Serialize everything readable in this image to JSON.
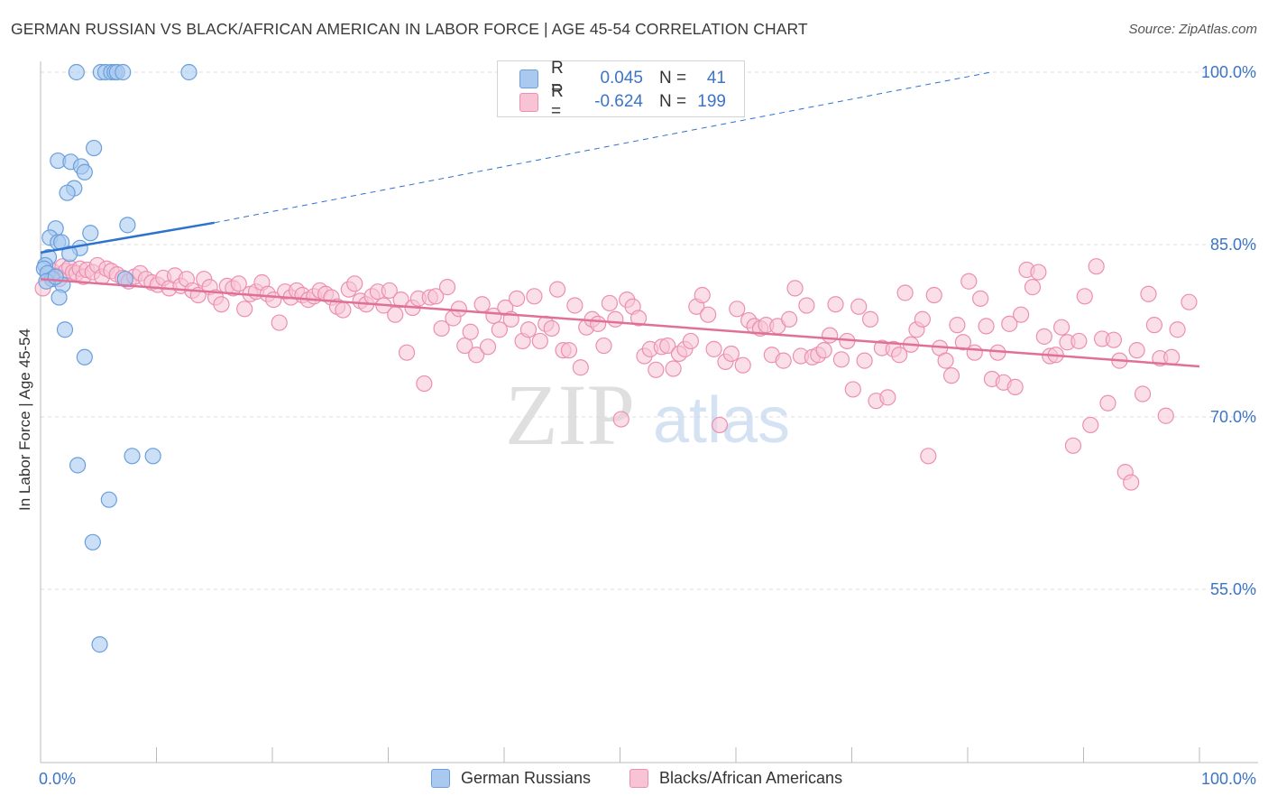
{
  "title": "GERMAN RUSSIAN VS BLACK/AFRICAN AMERICAN IN LABOR FORCE | AGE 45-54 CORRELATION CHART",
  "source": "Source: ZipAtlas.com",
  "watermark": {
    "zip": "ZIP",
    "atlas": "atlas"
  },
  "legend": {
    "rows": [
      {
        "r_label": "R =",
        "r_value": "0.045",
        "n_label": "N =",
        "n_value": "41",
        "color": "#7ab0e8"
      },
      {
        "r_label": "R =",
        "r_value": "-0.624",
        "n_label": "N =",
        "n_value": "199",
        "color": "#f3a0bd"
      }
    ]
  },
  "bottom_legend": [
    "German Russians",
    "Blacks/African Americans"
  ],
  "colors": {
    "blue_fill": "#a9c9f0",
    "blue_stroke": "#6a9fdc",
    "blue_line": "#2f72cc",
    "pink_fill": "#f8c4d5",
    "pink_stroke": "#ec8fb0",
    "pink_line": "#e07098",
    "value_text": "#3c74c6",
    "grid": "#dddddd"
  },
  "chart_data": {
    "type": "scatter",
    "title": "GERMAN RUSSIAN VS BLACK/AFRICAN AMERICAN IN LABOR FORCE | AGE 45-54 CORRELATION CHART",
    "xlabel": "",
    "ylabel": "In Labor Force | Age 45-54",
    "xlim": [
      0,
      100
    ],
    "ylim": [
      40,
      101.5
    ],
    "x_tick_labels": [
      "0.0%",
      "100.0%"
    ],
    "y_ticks": [
      55,
      70,
      85,
      100
    ],
    "y_tick_labels": [
      "55.0%",
      "70.0%",
      "85.0%",
      "100.0%"
    ],
    "grid": true,
    "series": [
      {
        "name": "German Russians",
        "r": 0.045,
        "n": 41,
        "trend": {
          "x": [
            0,
            15
          ],
          "y": [
            84.3,
            86.9
          ],
          "dashed_to": [
            82,
            100
          ]
        },
        "points": [
          [
            3.1,
            100
          ],
          [
            5.2,
            100
          ],
          [
            5.6,
            100
          ],
          [
            6.1,
            100
          ],
          [
            6.4,
            100
          ],
          [
            6.6,
            100
          ],
          [
            7.1,
            100
          ],
          [
            12.8,
            100
          ],
          [
            4.6,
            93.4
          ],
          [
            1.5,
            92.3
          ],
          [
            2.6,
            92.2
          ],
          [
            3.5,
            91.8
          ],
          [
            3.8,
            91.3
          ],
          [
            2.9,
            89.9
          ],
          [
            2.3,
            89.5
          ],
          [
            7.5,
            86.7
          ],
          [
            1.3,
            86.4
          ],
          [
            4.3,
            86.0
          ],
          [
            0.8,
            85.6
          ],
          [
            1.5,
            85.2
          ],
          [
            1.8,
            85.2
          ],
          [
            3.4,
            84.7
          ],
          [
            0.7,
            83.9
          ],
          [
            0.4,
            83.2
          ],
          [
            0.3,
            82.9
          ],
          [
            0.6,
            82.5
          ],
          [
            1.0,
            82.0
          ],
          [
            0.5,
            81.8
          ],
          [
            1.9,
            81.5
          ],
          [
            1.6,
            80.4
          ],
          [
            7.3,
            82.0
          ],
          [
            2.1,
            77.6
          ],
          [
            3.8,
            75.2
          ],
          [
            3.2,
            65.8
          ],
          [
            7.9,
            66.6
          ],
          [
            9.7,
            66.6
          ],
          [
            5.9,
            62.8
          ],
          [
            4.5,
            59.1
          ],
          [
            5.1,
            50.2
          ],
          [
            1.3,
            82.2
          ],
          [
            2.5,
            84.2
          ]
        ]
      },
      {
        "name": "Blacks/African Americans",
        "r": -0.624,
        "n": 199,
        "trend": {
          "x": [
            0,
            100
          ],
          "y": [
            82.0,
            74.4
          ]
        },
        "points": [
          [
            0.2,
            81.2
          ],
          [
            0.7,
            82.4
          ],
          [
            1.0,
            82.7
          ],
          [
            1.3,
            82.3
          ],
          [
            1.6,
            82.0
          ],
          [
            1.9,
            83.1
          ],
          [
            2.2,
            82.7
          ],
          [
            2.5,
            83.0
          ],
          [
            2.8,
            82.6
          ],
          [
            3.1,
            82.5
          ],
          [
            3.4,
            82.9
          ],
          [
            3.7,
            82.2
          ],
          [
            4.0,
            82.8
          ],
          [
            4.5,
            82.6
          ],
          [
            4.9,
            83.2
          ],
          [
            5.3,
            82.2
          ],
          [
            5.7,
            82.9
          ],
          [
            6.1,
            82.7
          ],
          [
            6.6,
            82.4
          ],
          [
            7.1,
            82.1
          ],
          [
            7.6,
            81.8
          ],
          [
            8.1,
            82.2
          ],
          [
            8.6,
            82.5
          ],
          [
            9.1,
            82.0
          ],
          [
            9.6,
            81.7
          ],
          [
            10.1,
            81.5
          ],
          [
            10.6,
            82.1
          ],
          [
            11.1,
            81.2
          ],
          [
            11.6,
            82.3
          ],
          [
            12.1,
            81.4
          ],
          [
            12.6,
            82.0
          ],
          [
            13.1,
            81.0
          ],
          [
            13.6,
            80.6
          ],
          [
            14.1,
            82.0
          ],
          [
            14.6,
            81.3
          ],
          [
            15.1,
            80.4
          ],
          [
            15.6,
            79.8
          ],
          [
            16.1,
            81.4
          ],
          [
            16.6,
            81.2
          ],
          [
            17.1,
            81.6
          ],
          [
            17.6,
            79.4
          ],
          [
            18.1,
            80.7
          ],
          [
            18.6,
            80.9
          ],
          [
            19.1,
            81.7
          ],
          [
            19.6,
            80.7
          ],
          [
            20.1,
            80.2
          ],
          [
            20.6,
            78.2
          ],
          [
            21.1,
            80.9
          ],
          [
            21.6,
            80.4
          ],
          [
            22.1,
            81.0
          ],
          [
            22.6,
            80.6
          ],
          [
            23.1,
            80.2
          ],
          [
            23.6,
            80.5
          ],
          [
            24.1,
            81.0
          ],
          [
            24.6,
            80.7
          ],
          [
            25.1,
            80.4
          ],
          [
            25.6,
            79.6
          ],
          [
            26.1,
            79.3
          ],
          [
            26.6,
            81.1
          ],
          [
            27.1,
            81.6
          ],
          [
            27.6,
            80.1
          ],
          [
            28.1,
            79.8
          ],
          [
            28.6,
            80.5
          ],
          [
            29.1,
            80.9
          ],
          [
            29.6,
            79.7
          ],
          [
            30.1,
            81.0
          ],
          [
            30.6,
            78.9
          ],
          [
            31.1,
            80.2
          ],
          [
            31.6,
            75.6
          ],
          [
            32.1,
            79.5
          ],
          [
            32.6,
            80.3
          ],
          [
            33.1,
            72.9
          ],
          [
            33.6,
            80.4
          ],
          [
            34.1,
            80.5
          ],
          [
            34.6,
            77.7
          ],
          [
            35.1,
            81.3
          ],
          [
            35.6,
            78.6
          ],
          [
            36.1,
            79.4
          ],
          [
            36.6,
            76.2
          ],
          [
            37.1,
            77.4
          ],
          [
            37.6,
            75.4
          ],
          [
            38.1,
            79.8
          ],
          [
            38.6,
            76.1
          ],
          [
            39.1,
            78.8
          ],
          [
            39.6,
            77.6
          ],
          [
            40.1,
            79.5
          ],
          [
            40.6,
            78.5
          ],
          [
            41.1,
            80.3
          ],
          [
            41.6,
            76.6
          ],
          [
            42.1,
            77.6
          ],
          [
            42.6,
            80.5
          ],
          [
            43.1,
            76.6
          ],
          [
            43.6,
            78.1
          ],
          [
            44.1,
            77.7
          ],
          [
            44.6,
            81.1
          ],
          [
            45.1,
            75.8
          ],
          [
            45.6,
            75.8
          ],
          [
            46.1,
            79.7
          ],
          [
            46.6,
            74.3
          ],
          [
            47.1,
            77.8
          ],
          [
            47.6,
            78.5
          ],
          [
            48.1,
            78.1
          ],
          [
            48.6,
            76.2
          ],
          [
            49.1,
            79.9
          ],
          [
            49.6,
            78.5
          ],
          [
            50.1,
            69.8
          ],
          [
            50.6,
            80.2
          ],
          [
            51.1,
            79.6
          ],
          [
            51.6,
            78.6
          ],
          [
            52.1,
            75.3
          ],
          [
            52.6,
            75.9
          ],
          [
            53.1,
            74.1
          ],
          [
            53.6,
            76.1
          ],
          [
            54.1,
            76.2
          ],
          [
            54.6,
            74.2
          ],
          [
            55.1,
            75.5
          ],
          [
            55.6,
            75.9
          ],
          [
            56.1,
            76.6
          ],
          [
            56.6,
            79.6
          ],
          [
            57.1,
            80.6
          ],
          [
            57.6,
            78.9
          ],
          [
            58.1,
            75.9
          ],
          [
            58.6,
            69.3
          ],
          [
            59.1,
            74.8
          ],
          [
            59.6,
            75.5
          ],
          [
            60.1,
            79.4
          ],
          [
            60.6,
            74.5
          ],
          [
            61.1,
            78.4
          ],
          [
            61.6,
            77.9
          ],
          [
            62.1,
            77.7
          ],
          [
            62.6,
            78.0
          ],
          [
            63.1,
            75.4
          ],
          [
            63.6,
            77.9
          ],
          [
            64.1,
            74.9
          ],
          [
            64.6,
            78.5
          ],
          [
            65.1,
            81.2
          ],
          [
            65.6,
            75.3
          ],
          [
            66.1,
            79.7
          ],
          [
            66.6,
            75.2
          ],
          [
            67.1,
            75.4
          ],
          [
            67.6,
            75.8
          ],
          [
            68.1,
            77.1
          ],
          [
            68.6,
            79.8
          ],
          [
            69.1,
            75.0
          ],
          [
            69.6,
            76.6
          ],
          [
            70.1,
            72.4
          ],
          [
            70.6,
            79.6
          ],
          [
            71.1,
            74.9
          ],
          [
            71.6,
            78.5
          ],
          [
            72.1,
            71.4
          ],
          [
            72.6,
            76.0
          ],
          [
            73.1,
            71.7
          ],
          [
            73.6,
            75.9
          ],
          [
            74.1,
            75.4
          ],
          [
            74.6,
            80.8
          ],
          [
            75.1,
            76.3
          ],
          [
            75.6,
            77.6
          ],
          [
            76.1,
            78.5
          ],
          [
            76.6,
            66.6
          ],
          [
            77.1,
            80.6
          ],
          [
            77.6,
            76.0
          ],
          [
            78.1,
            74.9
          ],
          [
            78.6,
            73.6
          ],
          [
            79.1,
            78.0
          ],
          [
            79.6,
            76.5
          ],
          [
            80.1,
            81.8
          ],
          [
            80.6,
            75.6
          ],
          [
            81.1,
            80.3
          ],
          [
            81.6,
            77.9
          ],
          [
            82.1,
            73.3
          ],
          [
            82.6,
            75.6
          ],
          [
            83.1,
            73.0
          ],
          [
            83.6,
            78.1
          ],
          [
            84.1,
            72.6
          ],
          [
            84.6,
            78.9
          ],
          [
            85.1,
            82.8
          ],
          [
            85.6,
            81.3
          ],
          [
            86.1,
            82.6
          ],
          [
            86.6,
            77.0
          ],
          [
            87.1,
            75.3
          ],
          [
            87.6,
            75.4
          ],
          [
            88.1,
            77.8
          ],
          [
            88.6,
            76.5
          ],
          [
            89.1,
            67.5
          ],
          [
            89.6,
            76.6
          ],
          [
            90.1,
            80.5
          ],
          [
            90.6,
            69.3
          ],
          [
            91.1,
            83.1
          ],
          [
            91.6,
            76.8
          ],
          [
            92.1,
            71.2
          ],
          [
            92.6,
            76.7
          ],
          [
            93.1,
            74.9
          ],
          [
            93.6,
            65.2
          ],
          [
            94.1,
            64.3
          ],
          [
            94.6,
            75.8
          ],
          [
            95.1,
            72.0
          ],
          [
            95.6,
            80.7
          ],
          [
            96.1,
            78.0
          ],
          [
            96.6,
            75.1
          ],
          [
            97.1,
            70.1
          ],
          [
            97.6,
            75.2
          ],
          [
            98.1,
            77.6
          ],
          [
            99.1,
            80.0
          ]
        ]
      }
    ]
  }
}
